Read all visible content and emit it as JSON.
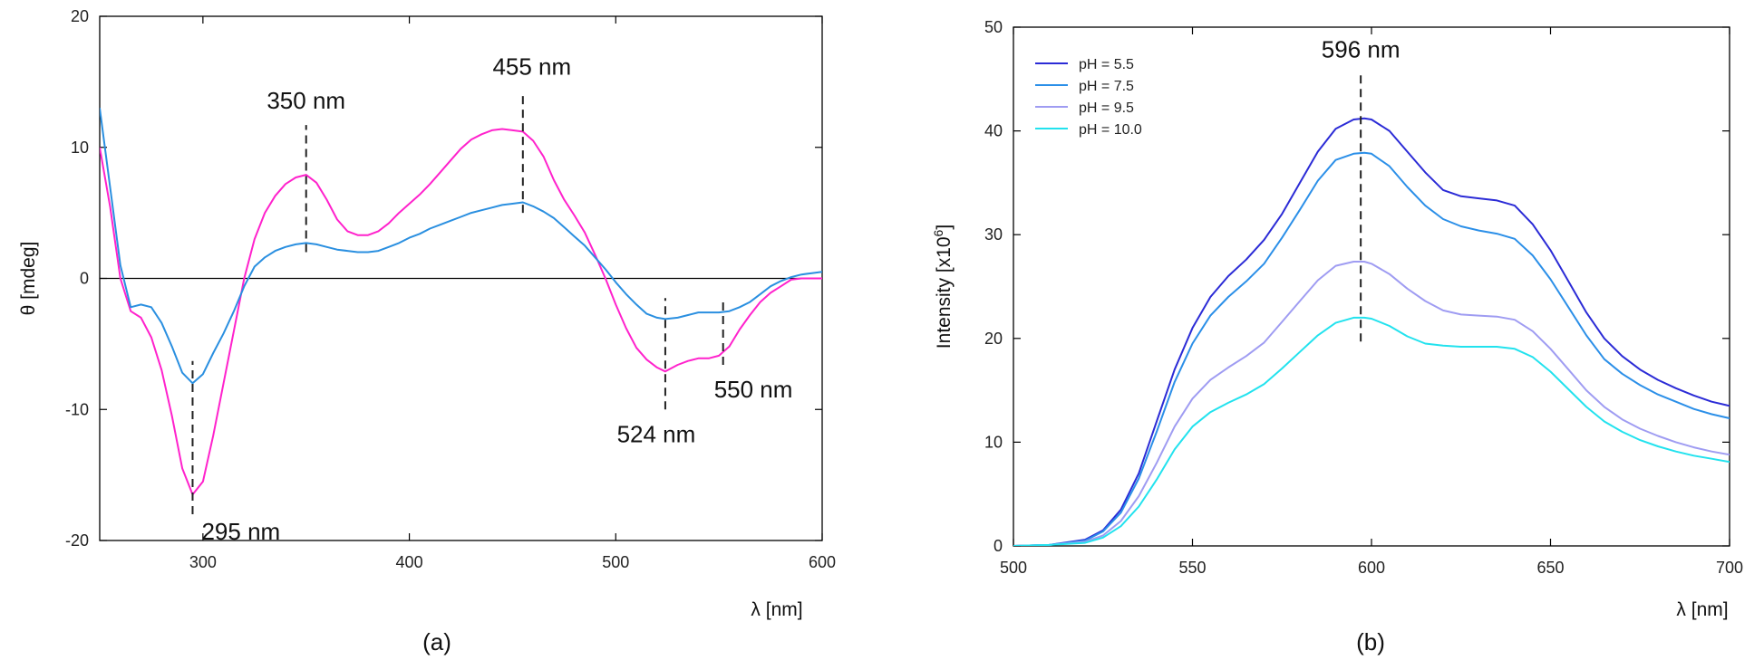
{
  "chart_data": [
    {
      "type": "line",
      "panel_label": "(a)",
      "xlabel": "λ [nm]",
      "ylabel": "θ [mdeg]",
      "xlim": [
        250,
        600
      ],
      "ylim": [
        -20,
        20
      ],
      "xticks": [
        300,
        400,
        500,
        600
      ],
      "yticks": [
        -20,
        -10,
        0,
        10,
        20
      ],
      "grid": false,
      "zero_line": true,
      "series": [
        {
          "color": "#ff22cc",
          "x": [
            250,
            255,
            260,
            265,
            270,
            275,
            280,
            285,
            290,
            295,
            300,
            305,
            310,
            315,
            320,
            325,
            330,
            335,
            340,
            345,
            350,
            355,
            360,
            365,
            370,
            375,
            380,
            385,
            390,
            395,
            400,
            405,
            410,
            415,
            420,
            425,
            430,
            435,
            440,
            445,
            450,
            455,
            460,
            465,
            470,
            475,
            480,
            485,
            490,
            495,
            500,
            505,
            510,
            515,
            520,
            524,
            530,
            535,
            540,
            545,
            550,
            555,
            560,
            565,
            570,
            575,
            580,
            585,
            590,
            595,
            600
          ],
          "y": [
            10,
            5.5,
            0,
            -2.5,
            -3,
            -4.5,
            -7,
            -10.5,
            -14.5,
            -16.5,
            -15.5,
            -12,
            -8,
            -4,
            0,
            3,
            5,
            6.3,
            7.2,
            7.7,
            7.9,
            7.3,
            6,
            4.5,
            3.6,
            3.3,
            3.3,
            3.6,
            4.2,
            5,
            5.7,
            6.4,
            7.2,
            8.1,
            9,
            9.9,
            10.6,
            11,
            11.3,
            11.4,
            11.3,
            11.2,
            10.5,
            9.3,
            7.5,
            6,
            4.8,
            3.5,
            1.8,
            0,
            -2,
            -3.8,
            -5.3,
            -6.2,
            -6.8,
            -7.1,
            -6.6,
            -6.3,
            -6.1,
            -6.1,
            -5.9,
            -5.2,
            -3.9,
            -2.8,
            -1.8,
            -1.1,
            -0.6,
            -0.1,
            0,
            0,
            0
          ]
        },
        {
          "color": "#2a8fe0",
          "x": [
            250,
            255,
            260,
            265,
            270,
            275,
            280,
            285,
            290,
            295,
            300,
            305,
            310,
            315,
            320,
            325,
            330,
            335,
            340,
            345,
            350,
            355,
            360,
            365,
            370,
            375,
            380,
            385,
            390,
            395,
            400,
            405,
            410,
            415,
            420,
            425,
            430,
            435,
            440,
            445,
            450,
            455,
            460,
            465,
            470,
            475,
            480,
            485,
            490,
            495,
            500,
            505,
            510,
            515,
            520,
            524,
            530,
            535,
            540,
            545,
            550,
            555,
            560,
            565,
            570,
            575,
            580,
            585,
            590,
            595,
            600
          ],
          "y": [
            13,
            7,
            1,
            -2.2,
            -2,
            -2.2,
            -3.4,
            -5.2,
            -7.2,
            -8,
            -7.3,
            -5.7,
            -4.2,
            -2.5,
            -0.6,
            0.9,
            1.6,
            2.1,
            2.4,
            2.6,
            2.7,
            2.6,
            2.4,
            2.2,
            2.1,
            2,
            2,
            2.1,
            2.4,
            2.7,
            3.1,
            3.4,
            3.8,
            4.1,
            4.4,
            4.7,
            5,
            5.2,
            5.4,
            5.6,
            5.7,
            5.8,
            5.5,
            5.1,
            4.6,
            3.9,
            3.2,
            2.5,
            1.6,
            0.7,
            -0.3,
            -1.2,
            -2,
            -2.7,
            -3,
            -3.1,
            -3,
            -2.8,
            -2.6,
            -2.6,
            -2.6,
            -2.5,
            -2.2,
            -1.8,
            -1.2,
            -0.6,
            -0.2,
            0.1,
            0.3,
            0.4,
            0.5
          ]
        }
      ],
      "annotations": [
        {
          "text": "295 nm",
          "x": 295,
          "line_y": [
            -18,
            -6.3
          ]
        },
        {
          "text": "350 nm",
          "x": 350,
          "line_y": [
            2,
            11.7
          ]
        },
        {
          "text": "455 nm",
          "x": 455,
          "line_y": [
            5,
            14.3
          ]
        },
        {
          "text": "524 nm",
          "x": 524,
          "line_y": [
            -10,
            -1.5
          ]
        },
        {
          "text": "550 nm",
          "x": 552,
          "line_y": [
            -6.6,
            -1.6
          ]
        }
      ]
    },
    {
      "type": "line",
      "panel_label": "(b)",
      "xlabel": "λ [nm]",
      "ylabel": "Intensity [x10",
      "ylabel_sup": "6",
      "ylabel_end": "]",
      "xlim": [
        500,
        700
      ],
      "ylim": [
        0,
        50
      ],
      "xticks": [
        500,
        550,
        600,
        650,
        700
      ],
      "yticks": [
        0,
        10,
        20,
        30,
        40,
        50
      ],
      "grid": false,
      "legend": "top-left",
      "series": [
        {
          "name": "pH = 5.5",
          "color": "#2b2bd6",
          "x": [
            500,
            510,
            520,
            525,
            530,
            535,
            540,
            545,
            550,
            555,
            560,
            565,
            570,
            575,
            580,
            585,
            590,
            595,
            598,
            600,
            605,
            610,
            615,
            620,
            625,
            630,
            635,
            640,
            645,
            650,
            655,
            660,
            665,
            670,
            675,
            680,
            685,
            690,
            695,
            700
          ],
          "y": [
            0,
            0.1,
            0.6,
            1.5,
            3.5,
            7,
            12,
            17,
            21,
            24,
            26,
            27.6,
            29.5,
            32,
            35,
            38,
            40.2,
            41.1,
            41.2,
            41.1,
            40,
            38,
            36,
            34.3,
            33.7,
            33.5,
            33.3,
            32.8,
            31,
            28.5,
            25.5,
            22.5,
            20,
            18.3,
            17,
            16,
            15.2,
            14.5,
            13.9,
            13.5
          ]
        },
        {
          "name": "pH = 7.5",
          "color": "#2b8fe8",
          "x": [
            500,
            510,
            520,
            525,
            530,
            535,
            540,
            545,
            550,
            555,
            560,
            565,
            570,
            575,
            580,
            585,
            590,
            595,
            598,
            600,
            605,
            610,
            615,
            620,
            625,
            630,
            635,
            640,
            645,
            650,
            655,
            660,
            665,
            670,
            675,
            680,
            685,
            690,
            695,
            700
          ],
          "y": [
            0,
            0.1,
            0.5,
            1.4,
            3.2,
            6.5,
            11,
            15.8,
            19.5,
            22.2,
            24,
            25.5,
            27.2,
            29.7,
            32.4,
            35.2,
            37.2,
            37.8,
            37.9,
            37.8,
            36.6,
            34.6,
            32.8,
            31.5,
            30.8,
            30.4,
            30.1,
            29.6,
            28,
            25.7,
            23,
            20.3,
            18,
            16.6,
            15.5,
            14.6,
            13.9,
            13.2,
            12.7,
            12.3
          ]
        },
        {
          "name": "pH = 9.5",
          "color": "#9f9cf2",
          "x": [
            500,
            510,
            520,
            525,
            530,
            535,
            540,
            545,
            550,
            555,
            560,
            565,
            570,
            575,
            580,
            585,
            590,
            595,
            598,
            600,
            605,
            610,
            615,
            620,
            625,
            630,
            635,
            640,
            645,
            650,
            655,
            660,
            665,
            670,
            675,
            680,
            685,
            690,
            695,
            700
          ],
          "y": [
            0,
            0.1,
            0.4,
            1,
            2.4,
            4.8,
            8,
            11.5,
            14.2,
            16,
            17.2,
            18.3,
            19.6,
            21.6,
            23.6,
            25.6,
            27,
            27.4,
            27.4,
            27.2,
            26.2,
            24.8,
            23.6,
            22.7,
            22.3,
            22.2,
            22.1,
            21.8,
            20.7,
            19,
            17,
            15,
            13.4,
            12.2,
            11.3,
            10.6,
            10,
            9.5,
            9.1,
            8.8
          ]
        },
        {
          "name": "pH = 10.0",
          "color": "#22e2ee",
          "x": [
            500,
            510,
            520,
            525,
            530,
            535,
            540,
            545,
            550,
            555,
            560,
            565,
            570,
            575,
            580,
            585,
            590,
            595,
            598,
            600,
            605,
            610,
            615,
            620,
            625,
            630,
            635,
            640,
            645,
            650,
            655,
            660,
            665,
            670,
            675,
            680,
            685,
            690,
            695,
            700
          ],
          "y": [
            0,
            0.1,
            0.3,
            0.8,
            1.9,
            3.8,
            6.4,
            9.3,
            11.5,
            12.9,
            13.8,
            14.6,
            15.6,
            17.1,
            18.7,
            20.3,
            21.5,
            22,
            22,
            21.9,
            21.2,
            20.2,
            19.5,
            19.3,
            19.2,
            19.2,
            19.2,
            19,
            18.2,
            16.8,
            15.1,
            13.4,
            12,
            11,
            10.2,
            9.6,
            9.1,
            8.7,
            8.4,
            8.1
          ]
        }
      ],
      "annotations": [
        {
          "text": "596 nm",
          "x": 597,
          "line_y": [
            19.7,
            45.5
          ]
        }
      ]
    }
  ]
}
